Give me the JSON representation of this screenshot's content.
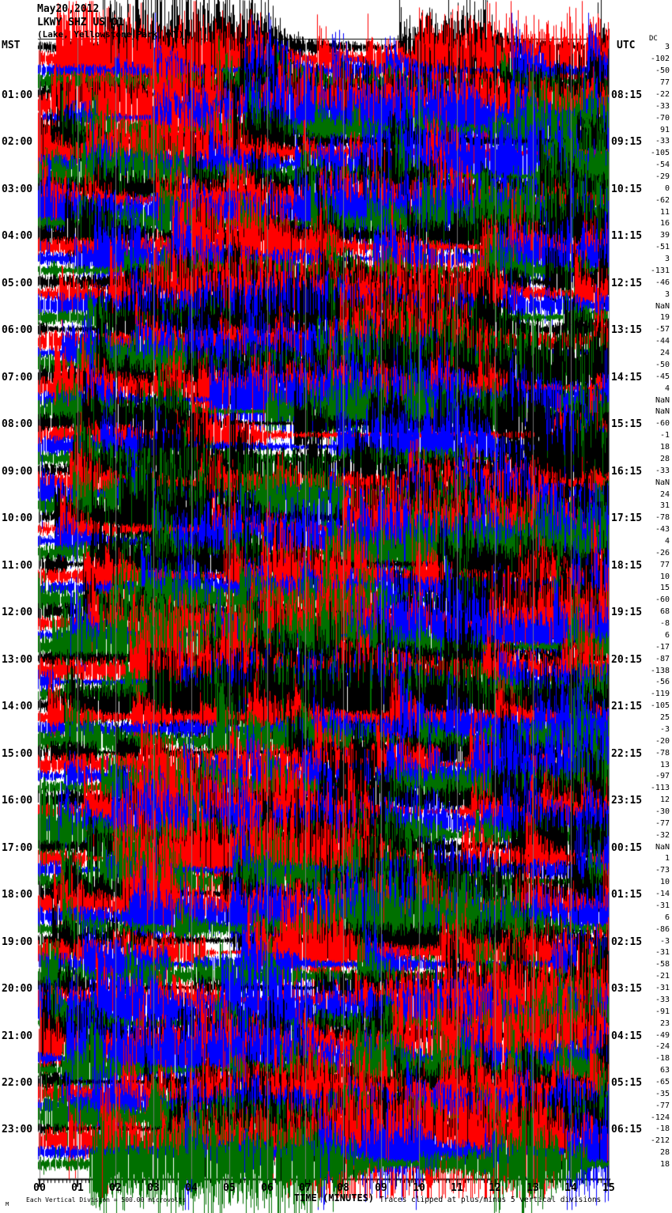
{
  "header": {
    "date": "May20,2012",
    "station": "LKWY SHZ US 01",
    "location": "(Lake, Yellowstone Park, WY)",
    "left_tz": "MST",
    "right_tz": "UTC",
    "dc_label": "DC"
  },
  "x_axis": {
    "label": "TIME (MINUTES)"
  },
  "footer": {
    "left": "Each Vertical Division = 500.00 microvolts",
    "right": "Traces clipped at plus/minus 5 vertical divisions",
    "mark": "M"
  },
  "chart_data": {
    "type": "line",
    "subtype": "helicorder-webicorder-seismogram",
    "title": "LKWY SHZ US 01 (Lake, Yellowstone Park, WY) May20,2012",
    "xlabel": "TIME (MINUTES)",
    "x_tick_labels": [
      "00",
      "01",
      "02",
      "03",
      "04",
      "05",
      "06",
      "07",
      "08",
      "09",
      "10",
      "11",
      "12",
      "13",
      "14",
      "15"
    ],
    "x_range_minutes": [
      0,
      15
    ],
    "minutes_per_row": 15,
    "rows": 96,
    "rows_per_hour": 4,
    "left_axis_label": "MST",
    "right_axis_label": "UTC",
    "left_tick_labels": [
      "01:00",
      "02:00",
      "03:00",
      "04:00",
      "05:00",
      "06:00",
      "07:00",
      "08:00",
      "09:00",
      "10:00",
      "11:00",
      "12:00",
      "13:00",
      "14:00",
      "15:00",
      "16:00",
      "17:00",
      "18:00",
      "19:00",
      "20:00",
      "21:00",
      "22:00",
      "23:00"
    ],
    "right_tick_labels": [
      "08:15",
      "09:15",
      "10:15",
      "11:15",
      "12:15",
      "13:15",
      "14:15",
      "15:15",
      "16:15",
      "17:15",
      "18:15",
      "19:15",
      "20:15",
      "21:15",
      "22:15",
      "23:15",
      "00:15",
      "01:15",
      "02:15",
      "03:15",
      "04:15",
      "05:15",
      "06:15"
    ],
    "dc_column_label": "DC",
    "dc_offsets_per_row": [
      "3",
      "-102",
      "-50",
      "77",
      "-22",
      "-33",
      "-70",
      "91",
      "-33",
      "-105",
      "-54",
      "-29",
      "0",
      "-62",
      "11",
      "16",
      "39",
      "-51",
      "3",
      "-131",
      "-46",
      "3",
      "NaN",
      "19",
      "-57",
      "-44",
      "24",
      "-50",
      "-45",
      "4",
      "NaN",
      "NaN",
      "-60",
      "-1",
      "18",
      "28",
      "-33",
      "NaN",
      "24",
      "31",
      "-78",
      "-43",
      "4",
      "-26",
      "77",
      "10",
      "15",
      "-60",
      "68",
      "-8",
      "6",
      "-17",
      "-87",
      "-138",
      "-56",
      "-119",
      "-105",
      "25",
      "-3",
      "-20",
      "-78",
      "13",
      "-97",
      "-113",
      "12",
      "-30",
      "-77",
      "-32",
      "NaN",
      "1",
      "-73",
      "10",
      "-14",
      "-31",
      "6",
      "-86",
      "-3",
      "-31",
      "-58",
      "-21",
      "-31",
      "-33",
      "-91",
      "23",
      "-49",
      "-24",
      "-18",
      "63",
      "-65",
      "-35",
      "-77",
      "-124",
      "-18",
      "-212",
      "28",
      "18"
    ],
    "trace_color_cycle": [
      "#000000",
      "#ff0000",
      "#0000ff",
      "#007000"
    ],
    "grid_color": "#808080",
    "amplitude_note": "Each Vertical Division = 500.00 microvolts",
    "clipping_note": "Traces clipped at plus/minus 5 vertical divisions",
    "waveform": "continuous heavily-clipped seismic noise traces; individual samples not legible in source image"
  }
}
